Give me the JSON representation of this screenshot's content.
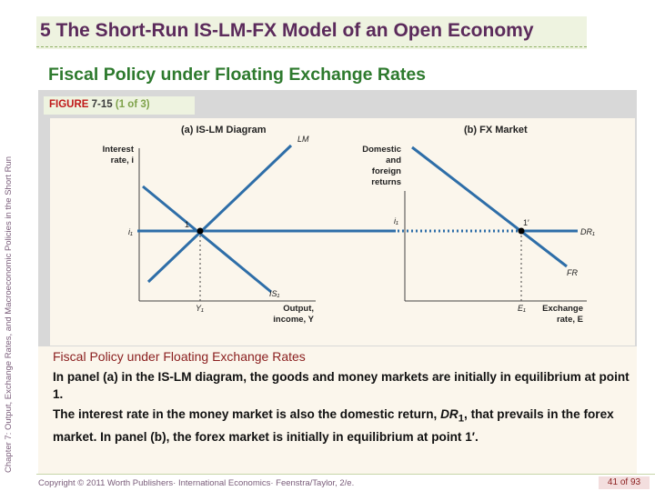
{
  "side_text": "Chapter 7: Output, Exchange Rates, and Macroeconomic Policies in the Short Run",
  "title": "5  The Short-Run IS-LM-FX Model of an Open Economy",
  "subtitle": "Fiscal Policy under Floating Exchange Rates",
  "figure": {
    "label": "FIGURE",
    "number": "7-15",
    "part": "(1 of 3)"
  },
  "panel_a": {
    "heading": "(a) IS-LM Diagram",
    "y_label_1": "Interest",
    "y_label_2": "rate, i",
    "x_label_1": "Output,",
    "x_label_2": "income, Y",
    "lm": "LM",
    "is": "IS₁",
    "point": "1",
    "i1": "i₁",
    "y1": "Y₁"
  },
  "panel_b": {
    "heading": "(b) FX Market",
    "y_label_1": "Domestic",
    "y_label_2": "and",
    "y_label_3": "foreign",
    "y_label_4": "returns",
    "x_label_1": "Exchange",
    "x_label_2": "rate, E",
    "dr": "DR₁",
    "fr": "FR",
    "point": "1′",
    "i1": "i₁",
    "e1": "E₁"
  },
  "colors": {
    "curve": "#2e6ea8",
    "title": "#5b2a5b",
    "subtitle": "#2e7a2e"
  },
  "caption": {
    "title": "Fiscal Policy under Floating Exchange Rates",
    "p1": "In panel (a) in the IS-LM diagram, the goods and money markets are initially in equilibrium at point 1.",
    "p2_a": "The interest rate in the money market is also the domestic return, ",
    "p2_dr": "DR",
    "p2_sub": "1",
    "p2_b": ", that prevails in the forex market. In panel (b), the forex market is initially in equilibrium at point 1′."
  },
  "footer": {
    "copyright": "Copyright © 2011 Worth Publishers· International Economics· Feenstra/Taylor, 2/e.",
    "page": "41 of 93"
  }
}
